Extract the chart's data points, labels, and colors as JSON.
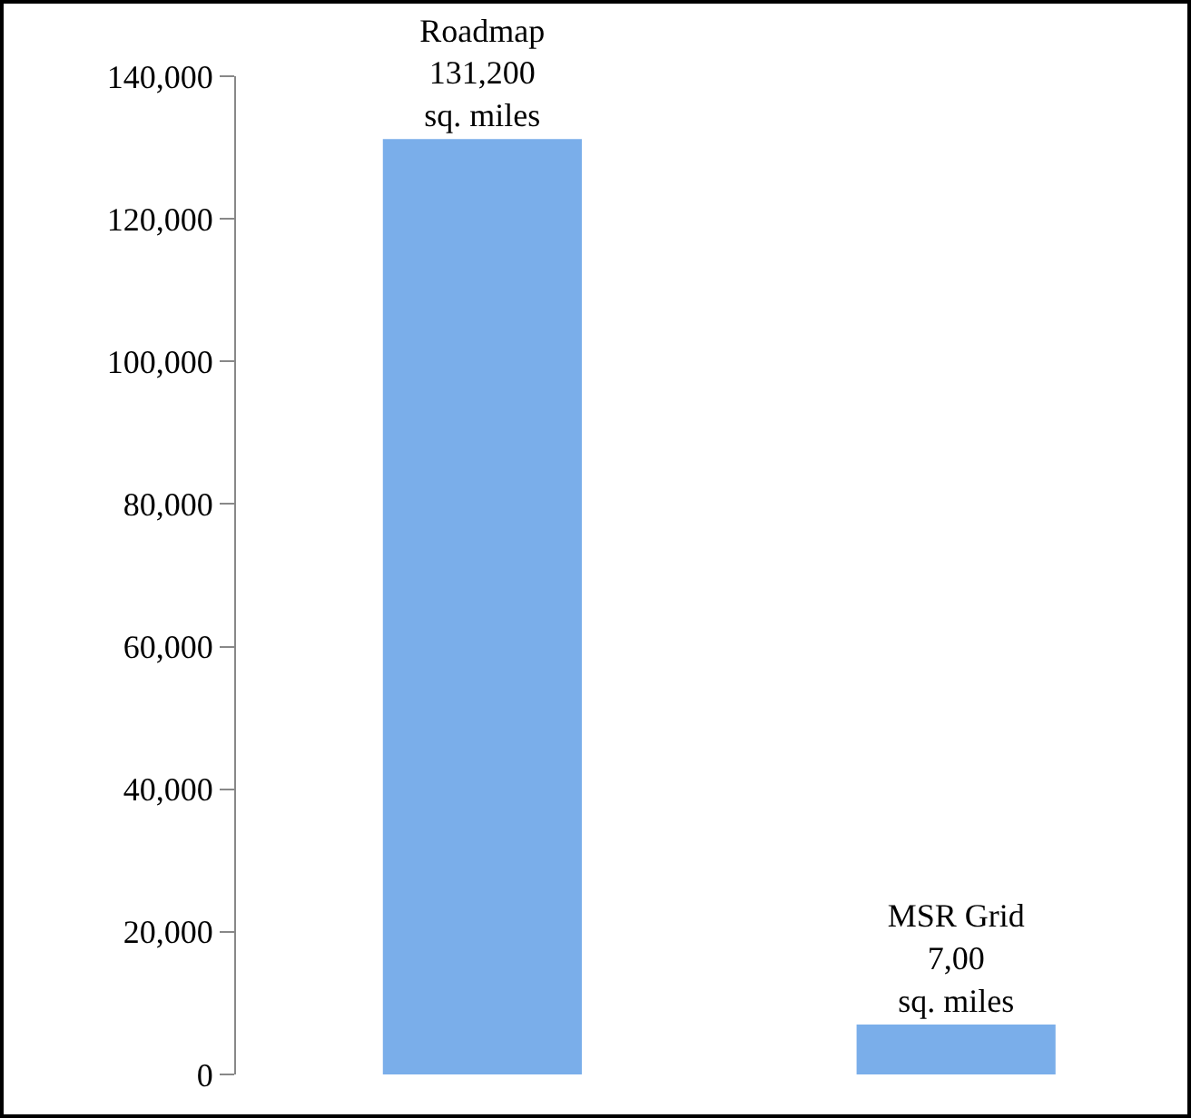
{
  "chart_data": {
    "type": "bar",
    "categories": [
      null,
      null
    ],
    "values": [
      131200,
      7000
    ],
    "color": "#7aaeea",
    "value_labels": [
      "Roadmap\n131,200\nsq. miles",
      "MSR Grid\n7,00\nsq. miles"
    ],
    "ylim": [
      0,
      140000
    ],
    "yticks": [
      {
        "value": 0,
        "label": "0"
      },
      {
        "value": 20000,
        "label": "20,000"
      },
      {
        "value": 40000,
        "label": "40,000"
      },
      {
        "value": 60000,
        "label": "60,000"
      },
      {
        "value": 80000,
        "label": "80,000"
      },
      {
        "value": 100000,
        "label": "100,000"
      },
      {
        "value": 120000,
        "label": "120,000"
      },
      {
        "value": 140000,
        "label": "140,000"
      }
    ],
    "grid": false,
    "legend": false
  }
}
